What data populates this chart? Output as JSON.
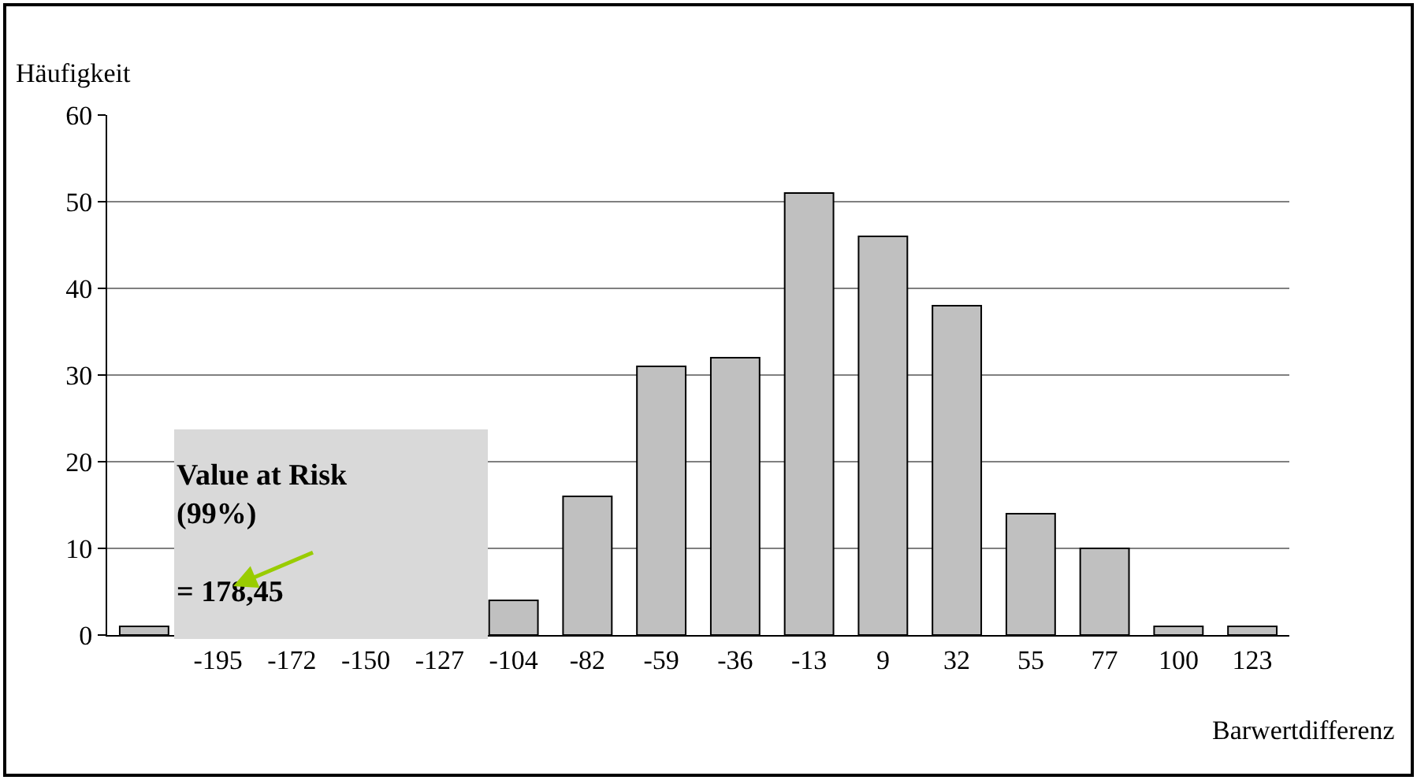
{
  "chart_data": {
    "type": "bar",
    "xlabel": "Barwertdifferenz",
    "ylabel": "Häufigkeit",
    "categories": [
      null,
      "-195",
      "-172",
      "-150",
      "-127",
      "-104",
      "-82",
      "-59",
      "-36",
      "-13",
      "9",
      "32",
      "55",
      "77",
      "100",
      "123"
    ],
    "values": [
      1,
      null,
      null,
      null,
      null,
      4,
      16,
      31,
      32,
      51,
      46,
      38,
      14,
      10,
      1,
      1
    ],
    "color": "#c0c0c0",
    "ylim": [
      0,
      60
    ],
    "yticks": [
      0,
      10,
      20,
      30,
      40,
      50,
      60
    ],
    "grid": "y",
    "annotations": [
      "Value at Risk\n(99%)\n\n= 178,45"
    ]
  }
}
